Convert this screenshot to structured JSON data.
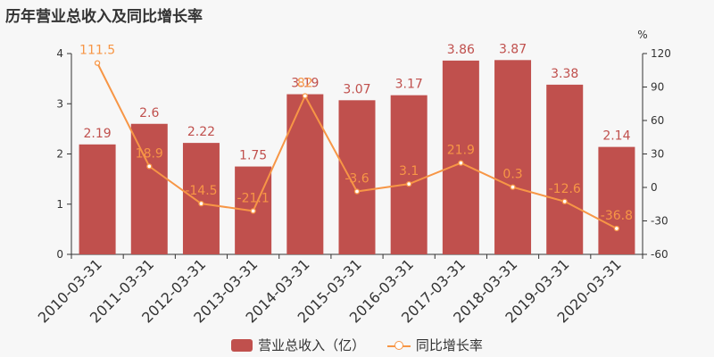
{
  "chart_data": {
    "type": "bar",
    "title": "历年营业总收入及同比增长率",
    "categories": [
      "2010-03-31",
      "2011-03-31",
      "2012-03-31",
      "2013-03-31",
      "2014-03-31",
      "2015-03-31",
      "2016-03-31",
      "2017-03-31",
      "2018-03-31",
      "2019-03-31",
      "2020-03-31"
    ],
    "series": [
      {
        "name": "营业总收入（亿）",
        "type": "bar",
        "axis": "left",
        "color": "#c0504d",
        "values": [
          2.19,
          2.6,
          2.22,
          1.75,
          3.19,
          3.07,
          3.17,
          3.86,
          3.87,
          3.38,
          2.14
        ],
        "labels": [
          "2.19",
          "2.6",
          "2.22",
          "1.75",
          "3.19",
          "3.07",
          "3.17",
          "3.86",
          "3.87",
          "3.38",
          "2.14"
        ]
      },
      {
        "name": "同比增长率",
        "type": "line",
        "axis": "right",
        "color": "#f79646",
        "values": [
          111.5,
          18.9,
          -14.5,
          -21.1,
          82,
          -3.6,
          3.1,
          21.9,
          0.3,
          -12.6,
          -36.8
        ],
        "labels": [
          "111.5",
          "18.9",
          "-14.5",
          "-21.1",
          "82",
          "-3.6",
          "3.1",
          "21.9",
          "0.3",
          "-12.6",
          "-36.8"
        ]
      }
    ],
    "y_left": {
      "min": 0,
      "max": 4,
      "ticks": [
        "0",
        "1",
        "2",
        "3",
        "4"
      ]
    },
    "y_right": {
      "label": "%",
      "min": -60,
      "max": 120,
      "ticks": [
        "-60",
        "-30",
        "0",
        "30",
        "60",
        "90",
        "120"
      ]
    },
    "legend_position": "bottom",
    "grid": false
  }
}
